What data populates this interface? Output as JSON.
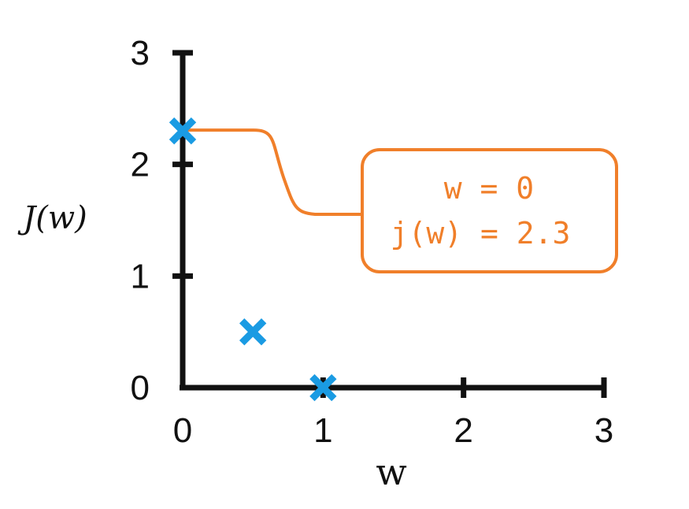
{
  "chart_data": {
    "type": "scatter",
    "xlabel": "w",
    "ylabel": "J(w)",
    "xlim": [
      0,
      3
    ],
    "ylim": [
      0,
      3
    ],
    "xticks": [
      "0",
      "1",
      "2",
      "3"
    ],
    "yticks": [
      "0",
      "1",
      "2",
      "3"
    ],
    "grid": false,
    "series": [
      {
        "marker": "x",
        "color": "#1a9be3",
        "points": [
          {
            "x": 0,
            "y": 2.3
          },
          {
            "x": 0.5,
            "y": 0.5
          },
          {
            "x": 1,
            "y": 0
          }
        ]
      }
    ],
    "annotation": {
      "target": {
        "x": 0,
        "y": 2.3
      },
      "lines": [
        "w = 0",
        "j(w) = 2.3"
      ],
      "color": "#f07f2a"
    },
    "axis_color": "#111111"
  }
}
